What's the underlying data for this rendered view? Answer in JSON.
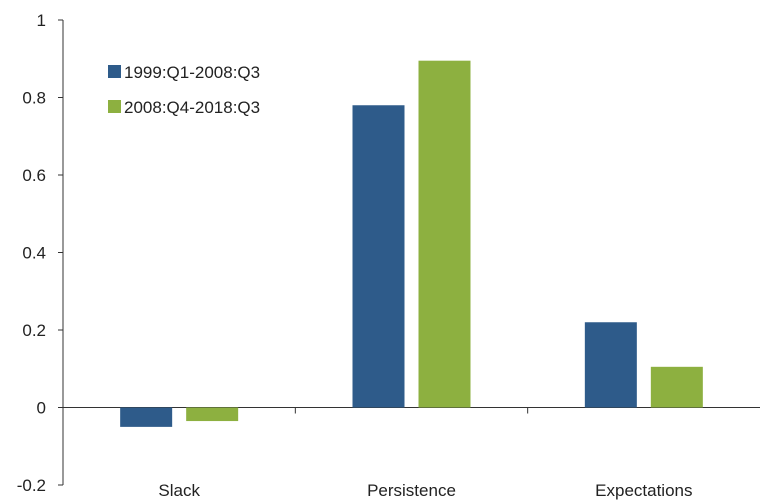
{
  "chart_data": {
    "type": "bar",
    "title": "",
    "xlabel": "",
    "ylabel": "",
    "categories": [
      "Slack",
      "Persistence",
      "Expectations"
    ],
    "series": [
      {
        "name": "1999:Q1-2008:Q3",
        "color": "#2e5b8a",
        "values": [
          -0.05,
          0.78,
          0.22
        ]
      },
      {
        "name": "2008:Q4-2018:Q3",
        "color": "#8db040",
        "values": [
          -0.035,
          0.895,
          0.105
        ]
      }
    ],
    "ylim": [
      -0.2,
      1
    ],
    "yticks": [
      {
        "value": -0.2,
        "label": "-0.2"
      },
      {
        "value": 0,
        "label": "0"
      },
      {
        "value": 0.2,
        "label": "0.2"
      },
      {
        "value": 0.4,
        "label": "0.4"
      },
      {
        "value": 0.6,
        "label": "0.6"
      },
      {
        "value": 0.8,
        "label": "0.8"
      },
      {
        "value": 1,
        "label": "1"
      }
    ],
    "grid": false,
    "legend_position": "top-left"
  }
}
